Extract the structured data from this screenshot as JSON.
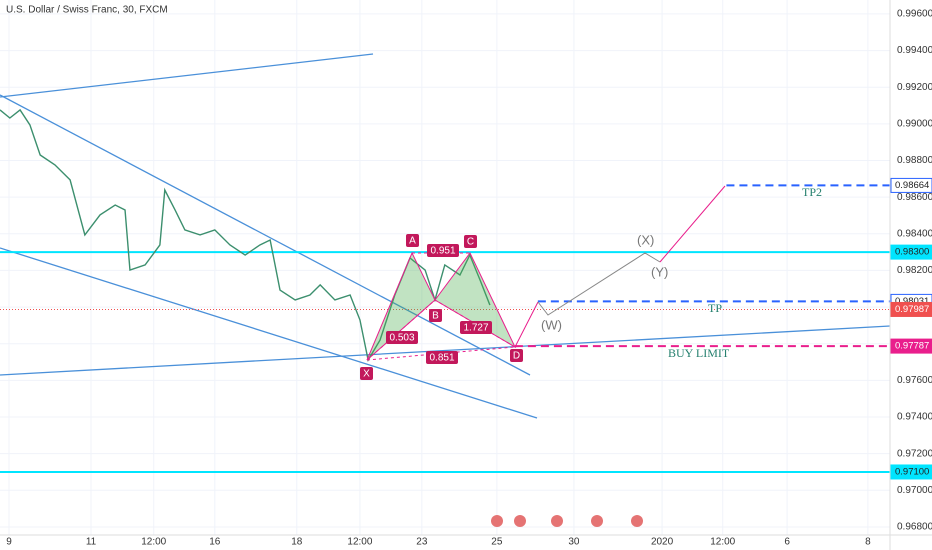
{
  "chart_data": {
    "type": "line",
    "title": "U.S. Dollar / Swiss Franc, 30, FXCM",
    "ylim": [
      0.96756,
      0.99676
    ],
    "yticks": [
      {
        "value": 0.996,
        "label": "0.99600"
      },
      {
        "value": 0.994,
        "label": "0.99400"
      },
      {
        "value": 0.992,
        "label": "0.99200"
      },
      {
        "value": 0.99,
        "label": "0.99000"
      },
      {
        "value": 0.988,
        "label": "0.98800"
      },
      {
        "value": 0.986,
        "label": "0.98600"
      },
      {
        "value": 0.984,
        "label": "0.98400"
      },
      {
        "value": 0.982,
        "label": "0.98200"
      },
      {
        "value": 0.98,
        "label": "0.98000"
      },
      {
        "value": 0.978,
        "label": "0.97800"
      },
      {
        "value": 0.976,
        "label": "0.97600"
      },
      {
        "value": 0.974,
        "label": "0.97400"
      },
      {
        "value": 0.972,
        "label": "0.97200"
      },
      {
        "value": 0.97,
        "label": "0.97000"
      },
      {
        "value": 0.968,
        "label": "0.96800"
      }
    ],
    "xlim": [
      -0.22,
      21.49
    ],
    "xticks": [
      {
        "value": 0,
        "label": "9"
      },
      {
        "value": 2,
        "label": "11"
      },
      {
        "value": 3.53,
        "label": "12:00"
      },
      {
        "value": 5.02,
        "label": "16"
      },
      {
        "value": 7.02,
        "label": "18"
      },
      {
        "value": 8.56,
        "label": "12:00"
      },
      {
        "value": 10.07,
        "label": "23"
      },
      {
        "value": 11.9,
        "label": "25"
      },
      {
        "value": 13.78,
        "label": "30"
      },
      {
        "value": 15.93,
        "label": "2020"
      },
      {
        "value": 17.41,
        "label": "12:00"
      },
      {
        "value": 18.98,
        "label": "6"
      },
      {
        "value": 20.95,
        "label": "8"
      }
    ],
    "grid": true,
    "series": [
      {
        "color": "#3c8f6e",
        "x": [
          -0.22,
          0.02,
          0.27,
          0.51,
          0.76,
          1.12,
          1.49,
          1.85,
          2.22,
          2.59,
          2.83,
          2.95,
          3.32,
          3.68,
          3.8,
          4.05,
          4.29,
          4.66,
          5.02,
          5.39,
          5.76,
          6.12,
          6.37,
          6.61,
          6.98,
          7.34,
          7.59,
          7.95,
          8.32,
          8.56,
          8.76,
          9.05,
          9.41,
          9.78,
          10.15,
          10.39,
          10.63,
          11.0,
          11.24,
          11.49,
          11.73
        ],
        "values": [
          0.99076,
          0.99032,
          0.99076,
          0.98994,
          0.9883,
          0.98776,
          0.98694,
          0.98394,
          0.98503,
          0.98557,
          0.9853,
          0.98202,
          0.9823,
          0.98339,
          0.98639,
          0.9853,
          0.98421,
          0.98394,
          0.98421,
          0.98339,
          0.98284,
          0.98339,
          0.98366,
          0.98093,
          0.98039,
          0.98066,
          0.98121,
          0.98039,
          0.98066,
          0.9793,
          0.97711,
          0.9782,
          0.98066,
          0.98268,
          0.98202,
          0.98039,
          0.9823,
          0.98175,
          0.98284,
          0.98148,
          0.98011
        ]
      }
    ],
    "levels": [
      {
        "value": 0.98664,
        "label": "0.98664",
        "color": "#2962ff",
        "style": "dashed",
        "start": 17.5,
        "box": "outline"
      },
      {
        "value": 0.983,
        "label": "0.98300",
        "color": "#00e5ff",
        "style": "solid",
        "start": -0.22,
        "box": "fill"
      },
      {
        "value": 0.98031,
        "label": "0.98031",
        "color": "#2962ff",
        "style": "dashed",
        "start": 12.9,
        "box": "outline"
      },
      {
        "value": 0.97987,
        "label": "0.97987",
        "color": "#f0504f",
        "style": "dotted",
        "start": -0.22,
        "box": "fill"
      },
      {
        "value": 0.97787,
        "label": "0.97787",
        "color": "#e91e8c",
        "style": "dashed",
        "start": 12.34,
        "box": "fill"
      },
      {
        "value": 0.971,
        "label": "0.97100",
        "color": "#00e5ff",
        "style": "solid",
        "start": -0.22,
        "box": "fill"
      }
    ],
    "pattern": {
      "points": [
        "X",
        "A",
        "B",
        "C",
        "D"
      ],
      "ratios": [
        0.503,
        0.951,
        1.727,
        0.851
      ]
    },
    "projection": [
      "(W)",
      "(X)",
      "(Y)"
    ],
    "notes": [
      "TP2",
      "TP",
      "BUY LIMIT"
    ]
  }
}
